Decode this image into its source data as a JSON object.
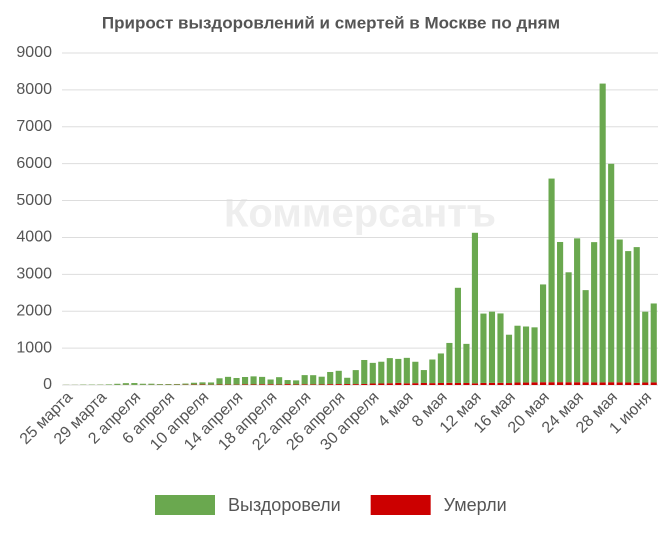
{
  "chart_data": {
    "type": "bar",
    "stacked": true,
    "title": "Прирост выздоровлений и смертей в Москве по дням",
    "watermark": "Коммерсантъ",
    "categories": [
      "25 марта",
      null,
      null,
      null,
      "29 марта",
      null,
      null,
      null,
      "2 апреля",
      null,
      null,
      null,
      "6 апреля",
      null,
      null,
      null,
      "10 апреля",
      null,
      null,
      null,
      "14 апреля",
      null,
      null,
      null,
      "18 апреля",
      null,
      null,
      null,
      "22 апреля",
      null,
      null,
      null,
      "26 апреля",
      null,
      null,
      null,
      "30 апреля",
      null,
      null,
      null,
      "4 мая",
      null,
      null,
      null,
      "8 мая",
      null,
      null,
      null,
      "12 мая",
      null,
      null,
      null,
      "16 мая",
      null,
      null,
      null,
      "20 мая",
      null,
      null,
      null,
      "24 мая",
      null,
      null,
      null,
      "28 мая",
      null,
      null,
      null,
      "1 июня",
      null
    ],
    "series": [
      {
        "name": "Умерли",
        "color": "#cc0000",
        "values": [
          1,
          1,
          2,
          1,
          3,
          2,
          3,
          5,
          3,
          4,
          5,
          6,
          7,
          8,
          9,
          11,
          12,
          9,
          12,
          11,
          10,
          17,
          14,
          20,
          19,
          12,
          24,
          15,
          18,
          16,
          15,
          23,
          25,
          26,
          24,
          28,
          40,
          41,
          49,
          57,
          46,
          50,
          55,
          51,
          55,
          60,
          55,
          55,
          46,
          56,
          58,
          60,
          53,
          67,
          66,
          73,
          76,
          76,
          77,
          75,
          75,
          72,
          73,
          71,
          76,
          73,
          70,
          58,
          67,
          70
        ]
      },
      {
        "name": "Выздоровели",
        "color": "#6aa84f",
        "values": [
          5,
          5,
          10,
          10,
          10,
          15,
          30,
          45,
          50,
          30,
          30,
          20,
          20,
          20,
          30,
          50,
          60,
          60,
          170,
          210,
          180,
          200,
          220,
          200,
          130,
          200,
          110,
          110,
          250,
          250,
          210,
          330,
          360,
          170,
          380,
          650,
          560,
          590,
          680,
          650,
          690,
          580,
          350,
          640,
          800,
          1080,
          2580,
          1060,
          4080,
          1880,
          1930,
          1880,
          1310,
          1540,
          1520,
          1490,
          2650,
          5520,
          3800,
          2980,
          3900,
          2500,
          3800,
          8100,
          5920,
          3870,
          3560,
          3680,
          1920,
          2140
        ]
      }
    ],
    "ylim": [
      0,
      9000
    ],
    "yticks": [
      0,
      1000,
      2000,
      3000,
      4000,
      5000,
      6000,
      7000,
      8000,
      9000
    ],
    "grid": true,
    "legend": "bottom"
  }
}
